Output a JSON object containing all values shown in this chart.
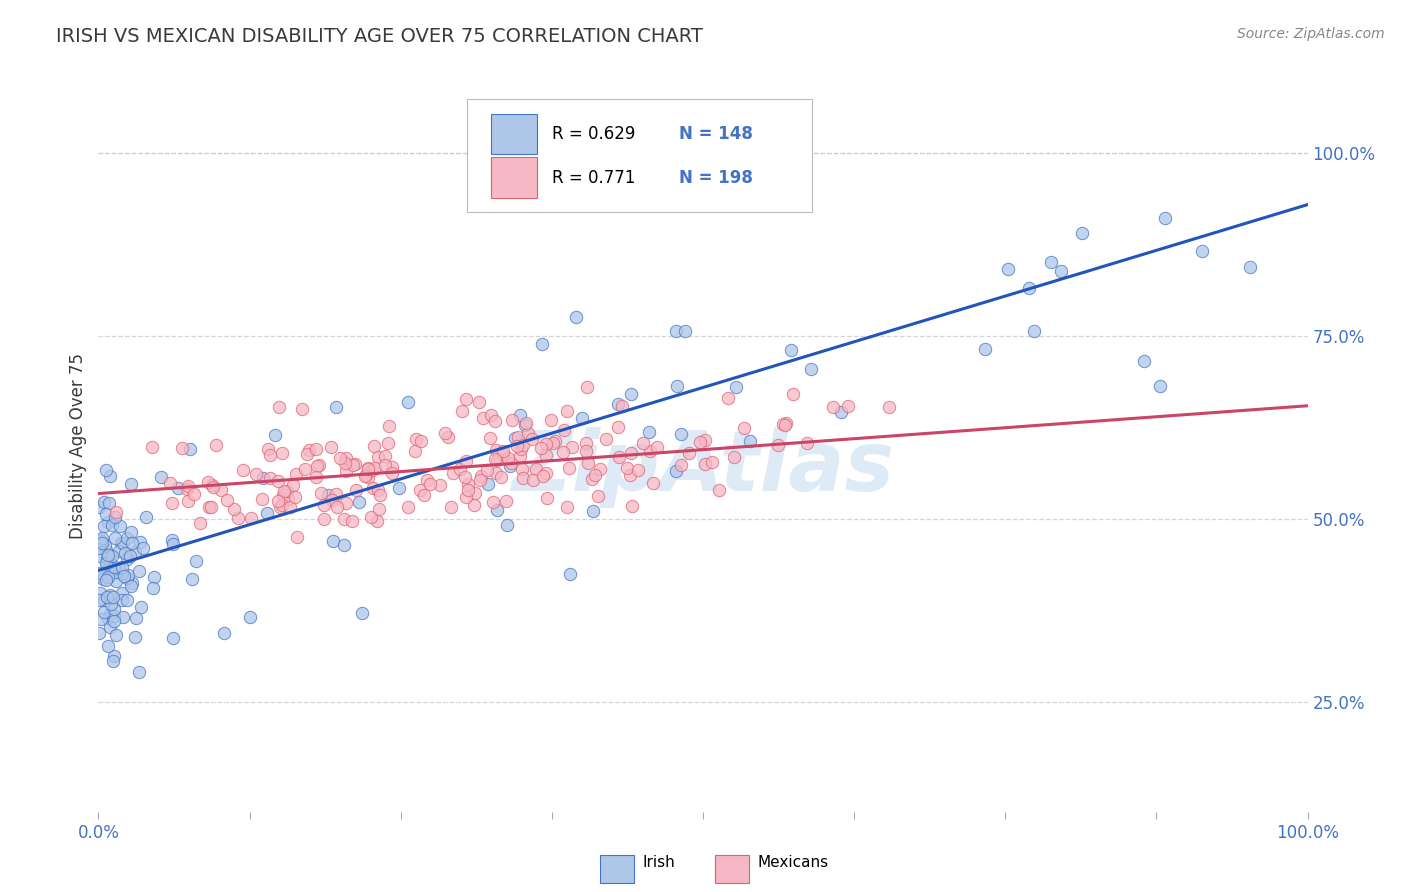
{
  "title": "IRISH VS MEXICAN DISABILITY AGE OVER 75 CORRELATION CHART",
  "source": "Source: ZipAtlas.com",
  "ylabel": "Disability Age Over 75",
  "irish_R": 0.629,
  "irish_N": 148,
  "mexican_R": 0.771,
  "mexican_N": 198,
  "irish_color": "#aec6e8",
  "irish_edge_color": "#4472c4",
  "mexican_color": "#f5b8c4",
  "mexican_edge_color": "#e06070",
  "irish_line_color": "#2255bb",
  "mexican_line_color": "#cc4466",
  "watermark_color": "#c8ddf0",
  "title_color": "#3a3a3a",
  "source_color": "#888888",
  "axis_label_color": "#3a3a3a",
  "tick_label_color": "#4472c4",
  "right_ytick_color": "#4472c4",
  "legend_N_color": "#4472c4",
  "background_color": "#ffffff",
  "grid_color": "#cccccc",
  "irish_trend_slope": 0.5,
  "irish_trend_intercept": 0.43,
  "mexican_trend_slope": 0.12,
  "mexican_trend_intercept": 0.535,
  "xlim": [
    0.0,
    1.0
  ],
  "ylim": [
    0.1,
    1.1
  ],
  "right_yticks": [
    0.25,
    0.5,
    0.75,
    1.0
  ],
  "right_yticklabels": [
    "25.0%",
    "50.0%",
    "75.0%",
    "100.0%"
  ]
}
